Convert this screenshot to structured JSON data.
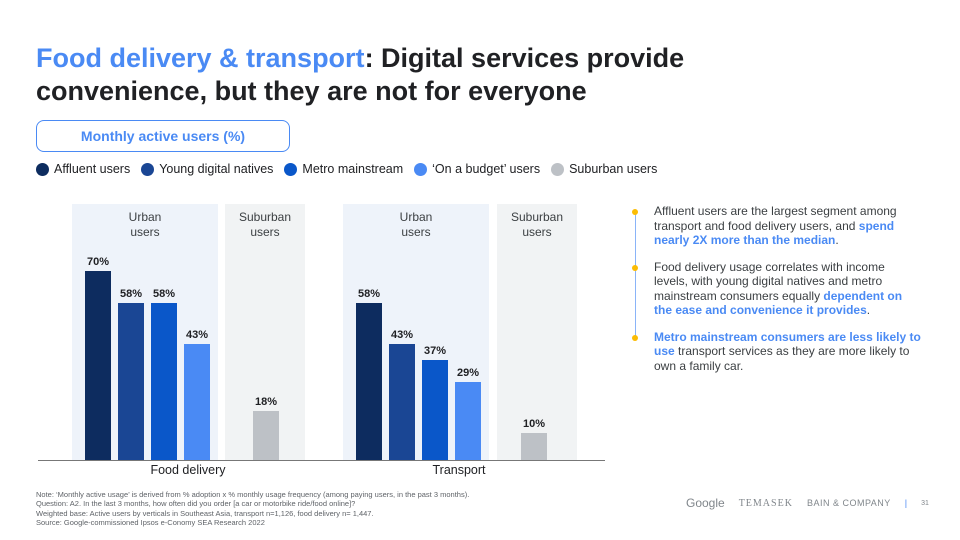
{
  "title": {
    "highlight": "Food delivery & transport",
    "rest": ": Digital services provide convenience, but they are not for everyone"
  },
  "pill": "Monthly active users (%)",
  "colors": {
    "affluent": "#0d2c5f",
    "young": "#1a4694",
    "metro": "#0a57c9",
    "budget": "#4a8af4",
    "suburban": "#bdc1c6",
    "panel_urban": "#eef3fa",
    "panel_suburban": "#f1f3f4"
  },
  "chart_data": {
    "type": "bar",
    "title": "Monthly active users (%)",
    "ylim": [
      0,
      100
    ],
    "legend": [
      "Affluent users",
      "Young digital natives",
      "Metro mainstream",
      "‘On a budget’ users",
      "Suburban users"
    ],
    "groups": [
      {
        "name": "Food delivery",
        "panels": [
          "Urban users",
          "Suburban users"
        ],
        "values": [
          70,
          58,
          58,
          43,
          18
        ],
        "labels": [
          "70%",
          "58%",
          "58%",
          "43%",
          "18%"
        ]
      },
      {
        "name": "Transport",
        "panels": [
          "Urban users",
          "Suburban users"
        ],
        "values": [
          58,
          43,
          37,
          29,
          10
        ],
        "labels": [
          "58%",
          "43%",
          "37%",
          "29%",
          "10%"
        ]
      }
    ]
  },
  "bullets": [
    {
      "plain": "Affluent users are the largest segment among transport and food delivery users, and ",
      "hl": "spend nearly 2X more than the median",
      "end": "."
    },
    {
      "plain": "Food delivery usage correlates with income levels, with young digital natives and metro mainstream consumers equally ",
      "hl": "dependent on the ease and convenience it provides",
      "end": "."
    },
    {
      "hl": "Metro mainstream consumers are less likely to use",
      "plain": " transport services as they are more likely to own a family car."
    }
  ],
  "notes": [
    "Note: ‘Monthly active usage’ is derived from % adoption x % monthly usage frequency (among paying users, in the past 3 months).",
    "Question: A2. In the last 3 months, how often did you order [a car or motorbike ride/food online]?",
    "Weighted base: Active users by verticals in Southeast Asia, transport n=1,126, food delivery n= 1,447.",
    "Source: Google-commissioned Ipsos e-Conomy SEA Research 2022"
  ],
  "footer": {
    "logos": [
      "Google",
      "TEMASEK",
      "BAIN & COMPANY"
    ],
    "page": "31"
  }
}
